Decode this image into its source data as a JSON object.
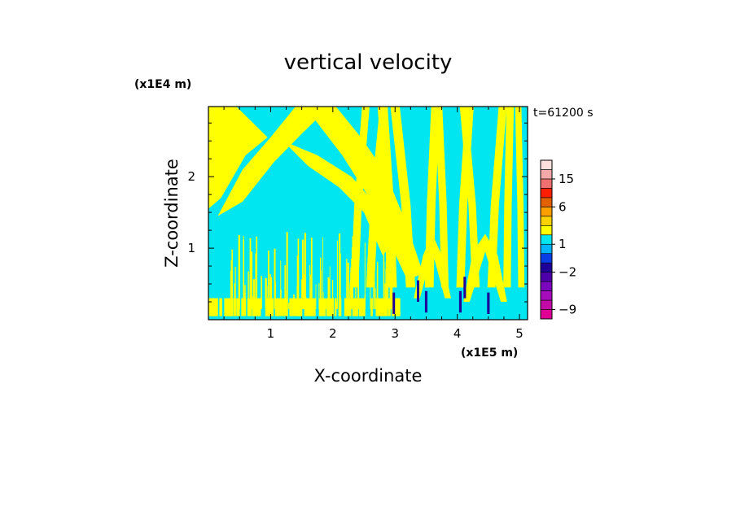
{
  "chart_data": {
    "type": "heatmap",
    "title": "vertical velocity",
    "xlabel": "X-coordinate",
    "ylabel": "Z-coordinate",
    "x_scale_label": "(x1E5 m)",
    "y_scale_label": "(x1E4 m)",
    "time_label": "t=61200 s",
    "xlim": [
      0,
      5.13
    ],
    "ylim": [
      0,
      2.98
    ],
    "x_ticks": [
      1,
      2,
      3,
      4,
      5
    ],
    "y_ticks": [
      1,
      2
    ],
    "x_tick_labels": [
      "1",
      "2",
      "3",
      "4",
      "5"
    ],
    "y_tick_labels": [
      "1",
      "2"
    ],
    "colorbar": {
      "levels": [
        -12,
        -9,
        -6,
        -4,
        -3,
        -2,
        -1,
        0,
        1,
        2,
        3,
        4,
        6,
        9,
        12,
        15,
        18,
        24
      ],
      "colors": [
        "#e10096",
        "#c40aa6",
        "#a60cbc",
        "#7a07bd",
        "#4d00a9",
        "#1e009a",
        "#0b3fe6",
        "#00b4ff",
        "#00e6f0",
        "#ffff00",
        "#ffd200",
        "#ffa000",
        "#e36000",
        "#ff1e00",
        "#f07070",
        "#f5a8a8",
        "#fde0dc"
      ],
      "labels": [
        {
          "value": 15,
          "text": "15"
        },
        {
          "value": 6,
          "text": "6"
        },
        {
          "value": 1,
          "text": "1"
        },
        {
          "value": -2,
          "text": "−2"
        },
        {
          "value": -9,
          "text": "−9"
        }
      ]
    },
    "field_description_colors": {
      "positive": "#ffff00",
      "negative": "#00e6f0",
      "strong_negative": "#1e009a"
    }
  }
}
